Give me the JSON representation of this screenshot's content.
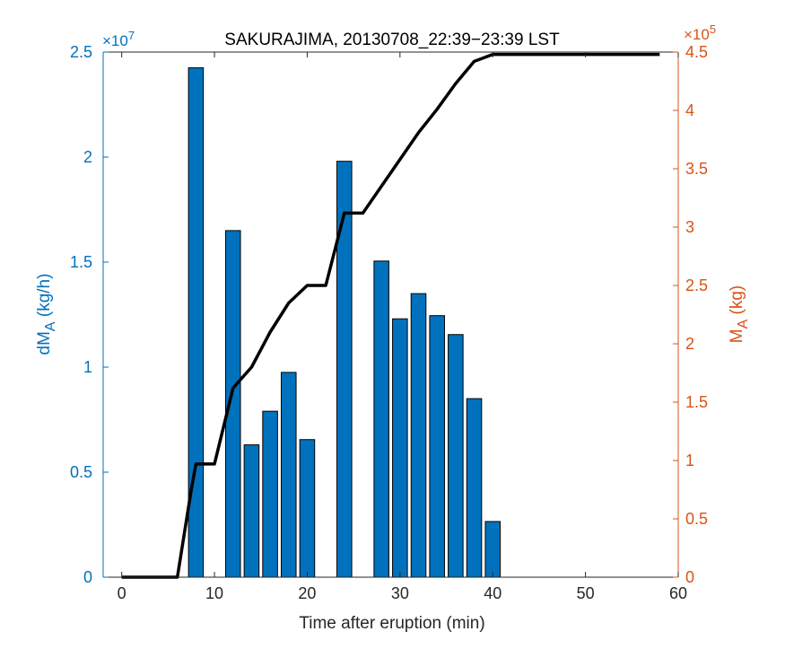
{
  "colors": {
    "left_axis": "#0072BD",
    "right_axis": "#D95319",
    "bars": "#0072BD",
    "line": "#000000",
    "axes": "#262626"
  },
  "chart_data": {
    "type": "bar",
    "title": "SAKURAJIMA, 20130708_22:39−23:39 LST",
    "xlabel": "Time after eruption (min)",
    "ylabel_left": "dM_A (kg/h)",
    "ylabel_right": "M_A (kg)",
    "xlim": [
      -2,
      60
    ],
    "ylim_left": [
      0,
      25000000
    ],
    "ylim_right": [
      0,
      450000
    ],
    "left_exponent": "×10^7",
    "right_exponent": "×10^5",
    "x_ticks": [
      "0",
      "10",
      "20",
      "30",
      "40",
      "50",
      "60"
    ],
    "y_left_ticks": [
      "0",
      "0.5",
      "1",
      "1.5",
      "2",
      "2.5"
    ],
    "y_right_ticks": [
      "0",
      "0.5",
      "1",
      "1.5",
      "2",
      "2.5",
      "3",
      "3.5",
      "4",
      "4.5"
    ],
    "grid": false,
    "bar_series": {
      "name": "dM_A (kg/h)",
      "axis": "left",
      "x": [
        8,
        12,
        14,
        16,
        18,
        20,
        24,
        28,
        30,
        32,
        34,
        36,
        38,
        40
      ],
      "values": [
        24250000,
        16500000,
        6300000,
        7900000,
        9750000,
        6550000,
        19800000,
        15050000,
        12300000,
        13500000,
        12450000,
        11550000,
        8500000,
        2650000
      ]
    },
    "line_series": {
      "name": "M_A (kg)",
      "axis": "right",
      "x": [
        0,
        6,
        7.5,
        8,
        10,
        12,
        14,
        16,
        18,
        20,
        22,
        24,
        26,
        28,
        30,
        32,
        34,
        36,
        38,
        40,
        42,
        44,
        46,
        48,
        50,
        52,
        54,
        56,
        58
      ],
      "values": [
        0,
        0,
        75000,
        97000,
        97000,
        162000,
        180000,
        210000,
        235000,
        250000,
        250000,
        312000,
        312000,
        335000,
        358000,
        381000,
        401000,
        423000,
        442000,
        448000,
        448000,
        448000,
        448000,
        448000,
        448000,
        448000,
        448000,
        448000,
        448000
      ]
    }
  }
}
